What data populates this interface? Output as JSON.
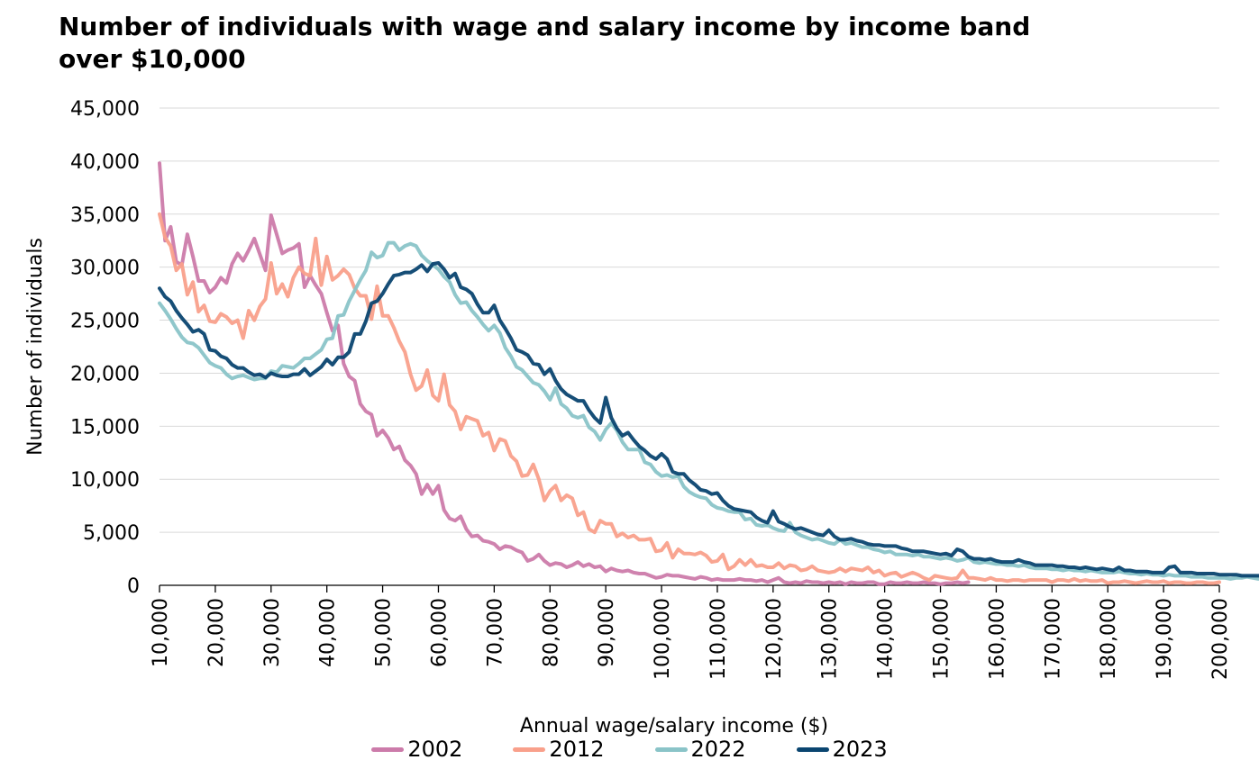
{
  "chart_data": {
    "type": "line",
    "title": "Number of individuals with wage and salary income by income band over $10,000",
    "xlabel": "Annual wage/salary income ($)",
    "ylabel": "Number of individuals",
    "xlim": [
      10000,
      200000
    ],
    "ylim": [
      0,
      45000
    ],
    "x_step": 1000,
    "x_start": 10000,
    "yticks": [
      "0",
      "5,000",
      "10,000",
      "15,000",
      "20,000",
      "25,000",
      "30,000",
      "35,000",
      "40,000",
      "45,000"
    ],
    "ytick_values": [
      0,
      5000,
      10000,
      15000,
      20000,
      25000,
      30000,
      35000,
      40000,
      45000
    ],
    "xticks": [
      "10,000",
      "20,000",
      "30,000",
      "40,000",
      "50,000",
      "60,000",
      "70,000",
      "80,000",
      "90,000",
      "100,000",
      "110,000",
      "120,000",
      "130,000",
      "140,000",
      "150,000",
      "160,000",
      "170,000",
      "180,000",
      "190,000",
      "200,000"
    ],
    "xtick_values": [
      10000,
      20000,
      30000,
      40000,
      50000,
      60000,
      70000,
      80000,
      90000,
      100000,
      110000,
      120000,
      130000,
      140000,
      150000,
      160000,
      170000,
      180000,
      190000,
      200000
    ],
    "grid": true,
    "legend_position": "bottom",
    "series": [
      {
        "name": "2002",
        "color": "#CC7BAA",
        "values": [
          39800,
          32500,
          33800,
          30500,
          30200,
          33100,
          31000,
          28700,
          28700,
          27600,
          28100,
          29000,
          28500,
          30300,
          31300,
          30600,
          31600,
          32700,
          31200,
          29700,
          34900,
          33100,
          31300,
          31600,
          31800,
          32200,
          28100,
          29200,
          28300,
          27500,
          25700,
          24000,
          24500,
          20900,
          19700,
          19300,
          17100,
          16400,
          16100,
          14100,
          14600,
          13900,
          12800,
          13100,
          11800,
          11300,
          10500,
          8600,
          9500,
          8600,
          9400,
          7100,
          6300,
          6100,
          6500,
          5300,
          4600,
          4700,
          4200,
          4100,
          3900,
          3400,
          3700,
          3600,
          3300,
          3100,
          2300,
          2500,
          2900,
          2300,
          1900,
          2100,
          2000,
          1700,
          1900,
          2200,
          1800,
          2000,
          1700,
          1800,
          1300,
          1600,
          1400,
          1300,
          1400,
          1200,
          1100,
          1100,
          900,
          700,
          800,
          1000,
          900,
          900,
          800,
          700,
          600,
          800,
          700,
          500,
          600,
          500,
          500,
          500,
          600,
          500,
          500,
          400,
          500,
          300,
          500,
          700,
          300,
          200,
          300,
          200,
          400,
          300,
          300,
          200,
          300,
          200,
          300,
          100,
          300,
          200,
          200,
          300,
          300,
          100,
          100,
          300,
          200,
          200,
          300,
          200,
          200,
          300,
          200,
          200,
          100,
          200,
          200,
          300,
          200,
          300
        ]
      },
      {
        "name": "2012",
        "color": "#F9A08B",
        "values": [
          35000,
          32800,
          32000,
          29700,
          30300,
          27400,
          28600,
          25800,
          26400,
          24900,
          24800,
          25600,
          25300,
          24700,
          25000,
          23300,
          25900,
          25000,
          26300,
          27000,
          30400,
          27500,
          28400,
          27200,
          29000,
          30000,
          29400,
          29200,
          32700,
          28300,
          31000,
          28800,
          29200,
          29800,
          29300,
          28000,
          27300,
          27300,
          25100,
          28200,
          25400,
          25400,
          24300,
          23000,
          22000,
          19900,
          18400,
          18800,
          20300,
          17900,
          17400,
          19900,
          17000,
          16400,
          14700,
          15900,
          15700,
          15500,
          14100,
          14400,
          12700,
          13800,
          13600,
          12200,
          11700,
          10300,
          10400,
          11400,
          10000,
          8000,
          8900,
          9400,
          8000,
          8500,
          8200,
          6600,
          6900,
          5300,
          5000,
          6100,
          5800,
          5800,
          4600,
          4900,
          4500,
          4700,
          4300,
          4300,
          4400,
          3200,
          3300,
          4000,
          2600,
          3400,
          3000,
          3000,
          2900,
          3100,
          2800,
          2200,
          2300,
          2900,
          1500,
          1800,
          2400,
          1900,
          2400,
          1800,
          1900,
          1700,
          1700,
          2100,
          1600,
          1900,
          1800,
          1400,
          1500,
          1800,
          1400,
          1300,
          1200,
          1300,
          1600,
          1300,
          1600,
          1500,
          1400,
          1700,
          1200,
          1400,
          900,
          1100,
          1200,
          800,
          1000,
          1200,
          1000,
          700,
          500,
          900,
          800,
          700,
          600,
          700,
          1400,
          700,
          700,
          600,
          500,
          700,
          500,
          500,
          400,
          500,
          500,
          400,
          500,
          500,
          500,
          500,
          300,
          500,
          500,
          400,
          600,
          400,
          500,
          400,
          400,
          500,
          200,
          300,
          300,
          400,
          300,
          200,
          300,
          400,
          300,
          300,
          400,
          200,
          300,
          300,
          200,
          200,
          300,
          300,
          200,
          200,
          300
        ]
      },
      {
        "name": "2022",
        "color": "#8AC4C8",
        "values": [
          26600,
          25900,
          25100,
          24200,
          23400,
          22900,
          22800,
          22400,
          21700,
          21000,
          20700,
          20500,
          19900,
          19500,
          19700,
          19800,
          19600,
          19400,
          19500,
          19500,
          20200,
          20100,
          20700,
          20600,
          20500,
          20900,
          21400,
          21400,
          21800,
          22200,
          23200,
          23300,
          25400,
          25500,
          26800,
          27800,
          28800,
          29700,
          31400,
          30900,
          31100,
          32300,
          32300,
          31600,
          32000,
          32200,
          32000,
          31100,
          30600,
          30200,
          29800,
          29100,
          28600,
          27400,
          26600,
          26700,
          25900,
          25300,
          24600,
          24000,
          24500,
          23800,
          22400,
          21600,
          20600,
          20300,
          19700,
          19100,
          18900,
          18300,
          17500,
          18600,
          17100,
          16700,
          16000,
          15800,
          16000,
          14900,
          14500,
          13700,
          14700,
          15300,
          14600,
          13500,
          12800,
          12800,
          12800,
          11600,
          11400,
          10700,
          10300,
          10400,
          10200,
          10300,
          9300,
          8800,
          8500,
          8300,
          8200,
          7600,
          7300,
          7200,
          7000,
          6900,
          6900,
          6200,
          6300,
          5700,
          5600,
          5700,
          5400,
          5200,
          5100,
          5900,
          5000,
          4700,
          4500,
          4300,
          4400,
          4200,
          4000,
          3900,
          4300,
          3900,
          4000,
          3800,
          3600,
          3600,
          3400,
          3300,
          3100,
          3200,
          2900,
          2900,
          2900,
          2800,
          2900,
          2700,
          2700,
          2600,
          2500,
          2600,
          2500,
          2300,
          2400,
          2600,
          2200,
          2100,
          2200,
          2100,
          2000,
          2000,
          1900,
          1900,
          1800,
          1900,
          1700,
          1600,
          1600,
          1600,
          1500,
          1500,
          1400,
          1500,
          1400,
          1400,
          1300,
          1400,
          1300,
          1200,
          1200,
          1200,
          1300,
          1200,
          1100,
          1100,
          1000,
          1100,
          1000,
          1000,
          900,
          1000,
          900,
          900,
          900,
          800,
          800,
          800,
          700,
          700,
          700,
          700,
          600,
          700,
          700,
          800,
          700,
          600,
          800,
          800,
          800,
          700,
          700,
          600,
          600,
          600,
          600,
          700
        ]
      },
      {
        "name": "2023",
        "color": "#0A4570",
        "values": [
          28000,
          27200,
          26800,
          25900,
          25200,
          24600,
          23900,
          24100,
          23700,
          22200,
          22100,
          21600,
          21400,
          20800,
          20500,
          20500,
          20100,
          19800,
          19900,
          19600,
          20000,
          19800,
          19700,
          19700,
          19900,
          19900,
          20400,
          19800,
          20200,
          20600,
          21300,
          20800,
          21500,
          21500,
          22000,
          23700,
          23700,
          24900,
          26600,
          26800,
          27500,
          28400,
          29200,
          29300,
          29500,
          29500,
          29800,
          30200,
          29600,
          30300,
          30400,
          29800,
          29000,
          29400,
          28100,
          27900,
          27500,
          26500,
          25700,
          25700,
          26400,
          25000,
          24200,
          23300,
          22200,
          22000,
          21700,
          20900,
          20800,
          19900,
          20400,
          19300,
          18500,
          18000,
          17700,
          17400,
          17400,
          16500,
          15800,
          15300,
          17700,
          15800,
          14800,
          14100,
          14400,
          13700,
          13100,
          12700,
          12200,
          11900,
          12400,
          11900,
          10700,
          10500,
          10500,
          9900,
          9500,
          9000,
          8900,
          8600,
          8700,
          8000,
          7500,
          7200,
          7100,
          7000,
          6900,
          6400,
          6100,
          5900,
          7000,
          6000,
          5800,
          5500,
          5300,
          5400,
          5200,
          5000,
          4800,
          4700,
          5200,
          4600,
          4300,
          4300,
          4400,
          4200,
          4100,
          3900,
          3800,
          3800,
          3700,
          3700,
          3700,
          3500,
          3400,
          3200,
          3200,
          3200,
          3100,
          3000,
          2900,
          3000,
          2800,
          3400,
          3200,
          2700,
          2500,
          2500,
          2400,
          2500,
          2300,
          2200,
          2200,
          2200,
          2400,
          2200,
          2100,
          1900,
          1900,
          1900,
          1900,
          1800,
          1800,
          1700,
          1700,
          1600,
          1700,
          1600,
          1500,
          1600,
          1500,
          1400,
          1700,
          1400,
          1400,
          1300,
          1300,
          1300,
          1200,
          1200,
          1200,
          1700,
          1800,
          1200,
          1200,
          1200,
          1100,
          1100,
          1100,
          1100,
          1000,
          1000,
          1000,
          1000,
          900,
          900,
          900,
          900,
          900,
          800,
          800,
          800,
          1000
        ]
      }
    ]
  }
}
